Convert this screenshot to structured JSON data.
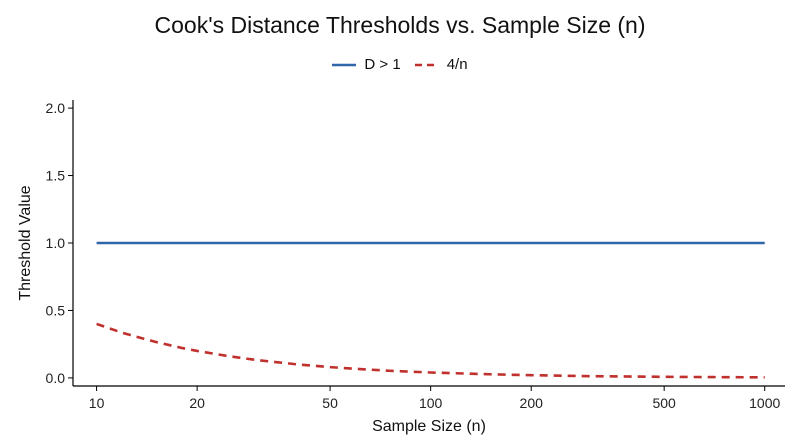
{
  "chart_data": {
    "type": "line",
    "title": "Cook's Distance Thresholds vs. Sample Size (n)",
    "xlabel": "Sample Size (n)",
    "ylabel": "Threshold Value",
    "x_scale": "log10",
    "xlim": [
      8.5,
      1150
    ],
    "ylim": [
      -0.06,
      2.06
    ],
    "x_ticks": [
      10,
      20,
      50,
      100,
      200,
      500,
      1000
    ],
    "x_tick_labels": [
      "10",
      "20",
      "50",
      "100",
      "200",
      "500",
      "1000"
    ],
    "y_ticks": [
      0,
      0.5,
      1,
      1.5,
      2
    ],
    "y_tick_labels": [
      "0.0",
      "0.5",
      "1.0",
      "1.5",
      "2.0"
    ],
    "grid": false,
    "legend_position": "top",
    "series": [
      {
        "name": "D > 1",
        "color": "#2F67A8",
        "dash": "solid",
        "x": [
          10,
          20,
          50,
          100,
          200,
          500,
          1000
        ],
        "y": [
          1,
          1,
          1,
          1,
          1,
          1,
          1
        ]
      },
      {
        "name": "4/n",
        "color": "#C0302C",
        "dash": "dashed",
        "x": [
          10,
          12,
          15,
          18,
          20,
          25,
          30,
          40,
          50,
          60,
          75,
          100,
          150,
          200,
          300,
          500,
          700,
          1000
        ],
        "y": [
          0.4,
          0.333,
          0.267,
          0.222,
          0.2,
          0.16,
          0.133,
          0.1,
          0.08,
          0.067,
          0.053,
          0.04,
          0.027,
          0.02,
          0.013,
          0.008,
          0.006,
          0.004
        ]
      }
    ]
  }
}
